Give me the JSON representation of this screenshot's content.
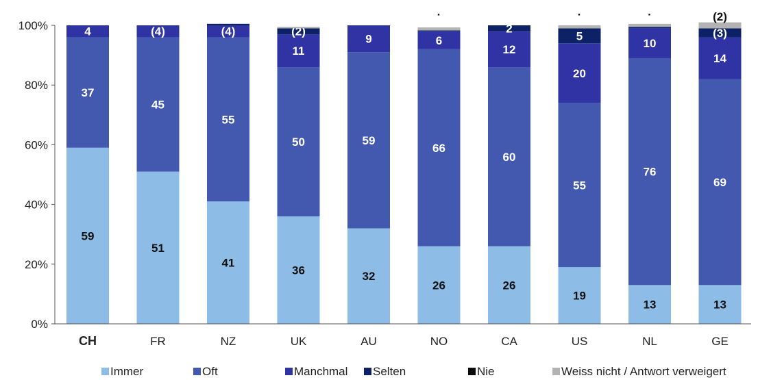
{
  "chart_data": {
    "type": "bar",
    "stacked": true,
    "title": "",
    "xlabel": "",
    "ylabel": "",
    "ylim": [
      0,
      100
    ],
    "yticks": [
      "0%",
      "20%",
      "40%",
      "60%",
      "80%",
      "100%"
    ],
    "categories": [
      "CH",
      "FR",
      "NZ",
      "UK",
      "AU",
      "NO",
      "CA",
      "US",
      "NL",
      "GE"
    ],
    "emphasized_category": "CH",
    "series": [
      {
        "name": "Immer",
        "color": "#8dbde6",
        "values": [
          59,
          51,
          41,
          36,
          32,
          26,
          26,
          19,
          13,
          13
        ],
        "labels": [
          "59",
          "51",
          "41",
          "36",
          "32",
          "26",
          "26",
          "19",
          "13",
          "13"
        ]
      },
      {
        "name": "Oft",
        "color": "#4359b0",
        "values": [
          37,
          45,
          55,
          50,
          59,
          66,
          60,
          55,
          76,
          69
        ],
        "labels": [
          "37",
          "45",
          "55",
          "50",
          "59",
          "66",
          "60",
          "55",
          "76",
          "69"
        ]
      },
      {
        "name": "Manchmal",
        "color": "#2f33a3",
        "values": [
          4,
          4,
          4,
          11,
          9,
          6,
          12,
          20,
          10,
          14
        ],
        "labels": [
          "4",
          "(4)",
          "(4)",
          "11",
          "9",
          "6",
          "12",
          "20",
          "10",
          "14"
        ]
      },
      {
        "name": "Selten",
        "color": "#0d2266",
        "values": [
          0,
          0,
          0.5,
          2,
          0,
          0.3,
          2,
          5,
          0.5,
          3
        ],
        "labels": [
          "",
          "",
          "",
          "(2)",
          "",
          "",
          "2",
          "5",
          "",
          "(3)"
        ]
      },
      {
        "name": "Nie",
        "color": "#0a0a0a",
        "values": [
          0,
          0,
          0,
          0,
          0,
          0,
          0,
          0,
          0,
          0
        ],
        "labels": [
          "",
          "",
          "",
          "",
          "",
          "",
          "",
          "",
          "",
          ""
        ]
      },
      {
        "name": "Weiss nicht / Antwort verweigert",
        "color": "#b3b3b3",
        "values": [
          0,
          0,
          0,
          0.5,
          0,
          1,
          0,
          1,
          1,
          2
        ],
        "labels": [
          "",
          "",
          "",
          "",
          "",
          "",
          "",
          "",
          "",
          ""
        ]
      }
    ],
    "annotations": [
      {
        "category": "NO",
        "text": "·"
      },
      {
        "category": "US",
        "text": "·"
      },
      {
        "category": "NL",
        "text": "·"
      },
      {
        "category": "GE",
        "text": "(2)"
      }
    ],
    "grid": false,
    "legend": "bottom"
  }
}
